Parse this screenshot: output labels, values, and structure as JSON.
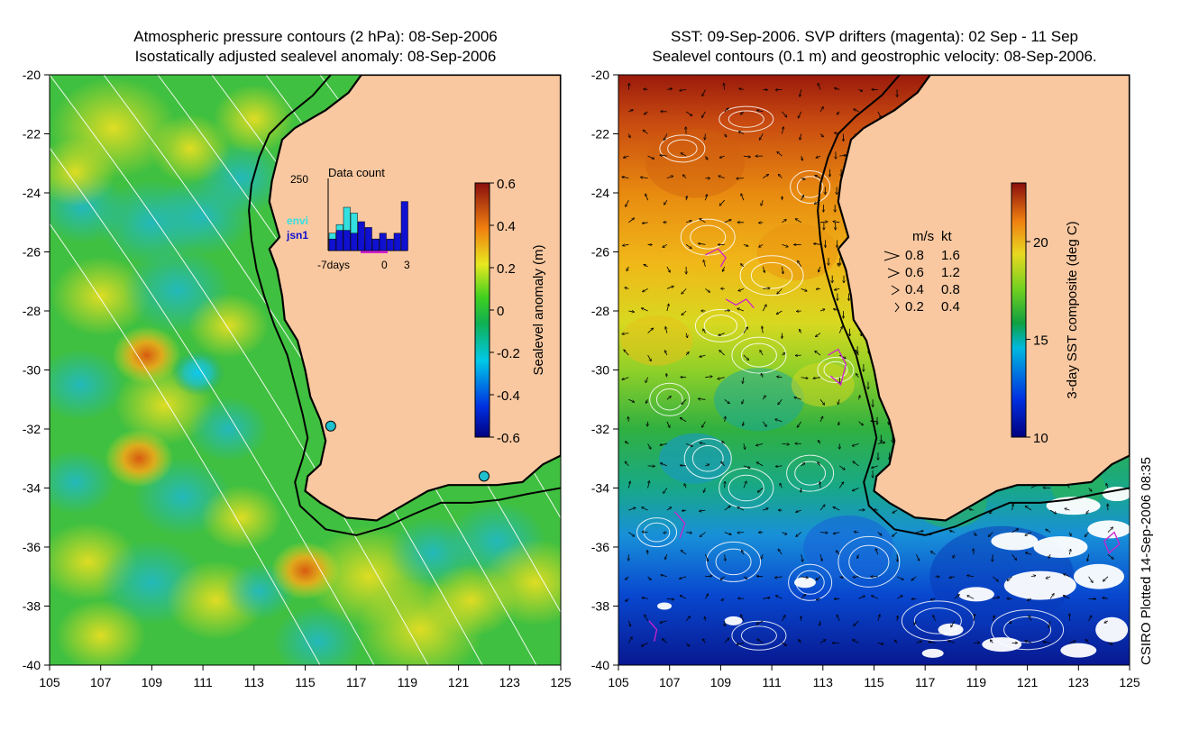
{
  "left_panel": {
    "title_line1": "Atmospheric pressure contours (2 hPa): 08-Sep-2006",
    "title_line2": "Isostatically adjusted sealevel anomaly: 08-Sep-2006"
  },
  "right_panel": {
    "title_line1": "SST: 09-Sep-2006. SVP drifters (magenta): 02 Sep - 11 Sep",
    "title_line2": "Sealevel contours (0.1 m) and geostrophic velocity: 08-Sep-2006."
  },
  "credit": "CSIRO Plotted 14-Sep-2006 08:35",
  "colors": {
    "land": "#f9c8a0",
    "coast": "#000000",
    "contour": "#ffffff",
    "drifter": "#d020d0",
    "envi": "#33e0e0",
    "jsn1": "#1010d0"
  },
  "chart_data": [
    {
      "type": "heatmap",
      "name": "sealevel-anomaly-map",
      "x_ticks": [
        "105",
        "107",
        "109",
        "111",
        "113",
        "115",
        "117",
        "119",
        "121",
        "123",
        "125"
      ],
      "y_ticks": [
        "-20",
        "-22",
        "-24",
        "-26",
        "-28",
        "-30",
        "-32",
        "-34",
        "-36",
        "-38",
        "-40"
      ],
      "xlim": [
        105,
        125
      ],
      "ylim": [
        -40,
        -20
      ],
      "colorbar": {
        "label": "Sealevel anomaly (m)",
        "range": [
          -0.6,
          0.6
        ],
        "ticks": [
          "0.6",
          "0.4",
          "0.2",
          "0",
          "-0.2",
          "-0.4",
          "-0.6"
        ]
      },
      "anomaly_centers": [
        {
          "lon": 108.5,
          "lat": -33.0,
          "value": 0.4
        },
        {
          "lon": 115.0,
          "lat": -36.8,
          "value": 0.35
        },
        {
          "lon": 108.8,
          "lat": -29.5,
          "value": 0.3
        },
        {
          "lon": 110.8,
          "lat": -30.1,
          "value": -0.35
        },
        {
          "lon": 110.5,
          "lat": -22.5,
          "value": 0.15
        },
        {
          "lon": 106.0,
          "lat": -23.3,
          "value": 0.15
        },
        {
          "lon": 113.0,
          "lat": -21.5,
          "value": 0.2
        }
      ],
      "altimeter_stations": [
        {
          "lon": 116.0,
          "lat": -31.9
        },
        {
          "lon": 122.0,
          "lat": -33.6
        }
      ],
      "inset": {
        "title": "Data count",
        "ymax_label": "250",
        "series": [
          {
            "name": "envi"
          },
          {
            "name": "jsn1"
          }
        ],
        "x_tick_labels": [
          "-7days",
          "0",
          "3"
        ],
        "envi_values": [
          60,
          90,
          150,
          130,
          40,
          20,
          40,
          0,
          0,
          0,
          0
        ],
        "jsn1_values": [
          40,
          70,
          70,
          60,
          100,
          80,
          40,
          60,
          40,
          60,
          170
        ]
      }
    },
    {
      "type": "heatmap",
      "name": "sst-map",
      "x_ticks": [
        "105",
        "107",
        "109",
        "111",
        "113",
        "115",
        "117",
        "119",
        "121",
        "123",
        "125"
      ],
      "y_ticks": [
        "-20",
        "-22",
        "-24",
        "-26",
        "-28",
        "-30",
        "-32",
        "-34",
        "-36",
        "-38",
        "-40"
      ],
      "xlim": [
        105,
        125
      ],
      "ylim": [
        -40,
        -20
      ],
      "colorbar": {
        "label": "3-day SST composite (deg C)",
        "range": [
          10,
          23
        ],
        "ticks": [
          "20",
          "15",
          "10"
        ]
      },
      "sst_gradient": [
        {
          "lat": -20,
          "value": 23
        },
        {
          "lat": -24,
          "value": 21.5
        },
        {
          "lat": -27,
          "value": 20
        },
        {
          "lat": -30,
          "value": 17
        },
        {
          "lat": -33,
          "value": 15
        },
        {
          "lat": -36,
          "value": 12.5
        },
        {
          "lat": -40,
          "value": 10
        }
      ],
      "velocity_legend": {
        "headers": [
          "m/s",
          "kt"
        ],
        "rows": [
          [
            "0.8",
            "1.6"
          ],
          [
            "0.6",
            "1.2"
          ],
          [
            "0.4",
            "0.8"
          ],
          [
            "0.2",
            "0.4"
          ]
        ]
      }
    }
  ]
}
